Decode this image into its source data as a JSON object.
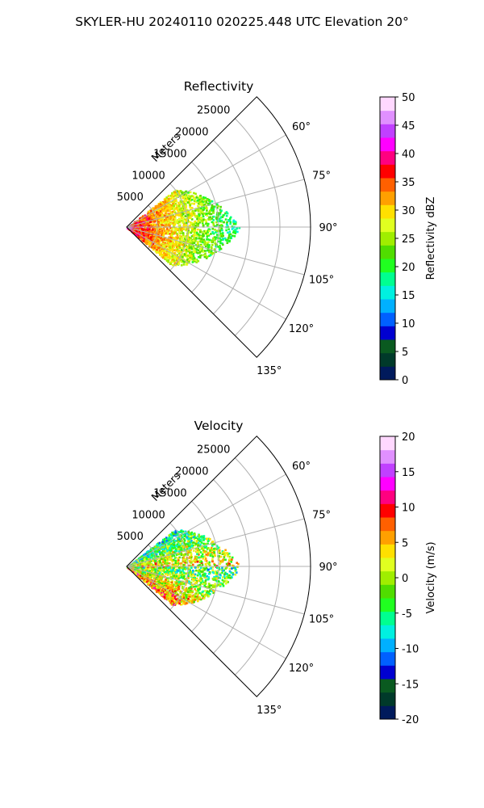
{
  "figure": {
    "suptitle": "SKYLER-HU  20240110  020225.448 UTC Elevation 20°"
  },
  "chart_data": [
    {
      "type": "heatmap",
      "projection": "polar-sector",
      "title": "Reflectivity",
      "radial_label": "Meters",
      "radial_ticks": [
        "5000",
        "10000",
        "15000",
        "20000",
        "25000"
      ],
      "radial_values": [
        5000,
        10000,
        15000,
        20000,
        25000
      ],
      "rlim": [
        0,
        30000
      ],
      "angle_ticks": [
        "60°",
        "75°",
        "90°",
        "105°",
        "120°",
        "135°"
      ],
      "angle_values": [
        60,
        75,
        90,
        105,
        120,
        135
      ],
      "theta_range_deg": [
        45,
        135
      ],
      "data_extent": {
        "max_range_m": 18500,
        "echo_angles_deg": [
          52,
          130
        ]
      },
      "colorbar": {
        "label": "Reflectivity dBZ",
        "ticks": [
          "0",
          "5",
          "10",
          "15",
          "20",
          "25",
          "30",
          "35",
          "40",
          "45",
          "50"
        ],
        "range": [
          0,
          50
        ]
      },
      "grid": true
    },
    {
      "type": "heatmap",
      "projection": "polar-sector",
      "title": "Velocity",
      "radial_label": "Meters",
      "radial_ticks": [
        "5000",
        "10000",
        "15000",
        "20000",
        "25000"
      ],
      "radial_values": [
        5000,
        10000,
        15000,
        20000,
        25000
      ],
      "rlim": [
        0,
        30000
      ],
      "angle_ticks": [
        "60°",
        "75°",
        "90°",
        "105°",
        "120°",
        "135°"
      ],
      "angle_values": [
        60,
        75,
        90,
        105,
        120,
        135
      ],
      "theta_range_deg": [
        45,
        135
      ],
      "data_extent": {
        "max_range_m": 18500,
        "echo_angles_deg": [
          52,
          130
        ]
      },
      "colorbar": {
        "label": "Velocity (m/s)",
        "ticks": [
          "-20",
          "-15",
          "-10",
          "-5",
          "0",
          "5",
          "10",
          "15",
          "20"
        ],
        "range": [
          -20,
          20
        ]
      },
      "grid": true
    }
  ],
  "colormap": [
    "#001a5c",
    "#003a2a",
    "#0a5a20",
    "#0000d0",
    "#0060ff",
    "#00b0ff",
    "#00f0e0",
    "#00ff90",
    "#20ff20",
    "#50dd00",
    "#a0ee00",
    "#e0ff20",
    "#ffe000",
    "#ffa000",
    "#ff6000",
    "#ff0000",
    "#ff0080",
    "#ff00ff",
    "#c040ff",
    "#e090ff",
    "#ffd8ff"
  ]
}
